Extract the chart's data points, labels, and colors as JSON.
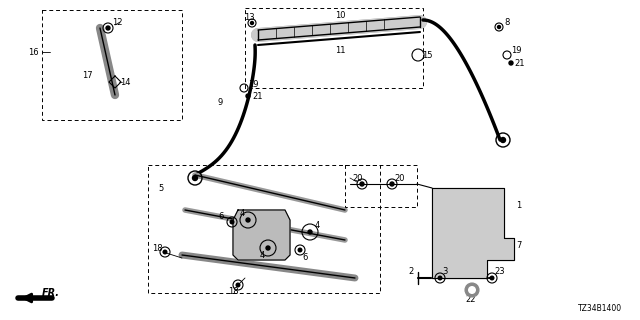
{
  "bg_color": "#ffffff",
  "line_color": "#000000",
  "code": "TZ34B1400",
  "figsize": [
    6.4,
    3.2
  ],
  "dpi": 100
}
